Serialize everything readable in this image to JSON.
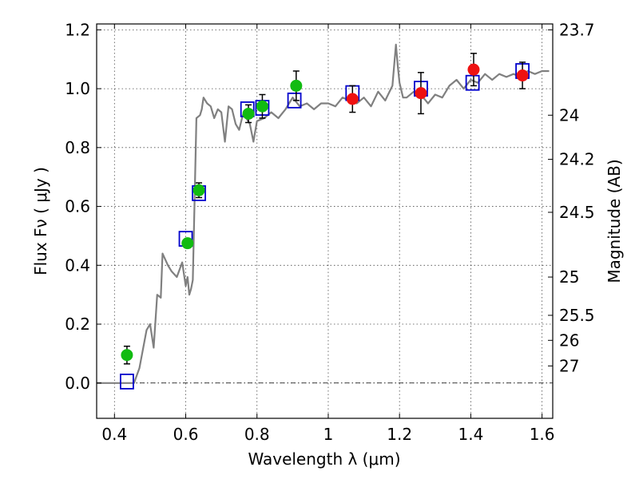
{
  "chart_data": {
    "type": "scatter",
    "xlabel": "Wavelength  λ (μm)",
    "ylabel": "Flux  Fν  ( μJy )",
    "ylabel_right": "Magnitude (AB)",
    "xlim": [
      0.35,
      1.63
    ],
    "ylim": [
      -0.12,
      1.22
    ],
    "x_ticks": [
      0.4,
      0.6,
      0.8,
      1.0,
      1.2,
      1.4,
      1.6
    ],
    "x_tick_labels": [
      "0.4",
      "0.6",
      "0.8",
      "1",
      "1.2",
      "1.4",
      "1.6"
    ],
    "y_ticks": [
      0.0,
      0.2,
      0.4,
      0.6,
      0.8,
      1.0,
      1.2
    ],
    "y_tick_labels": [
      "0.0",
      "0.2",
      "0.4",
      "0.6",
      "0.8",
      "1.0",
      "1.2"
    ],
    "right_ticks": [
      {
        "label": "23.7",
        "flux": 1.2
      },
      {
        "label": "24",
        "flux": 0.91
      },
      {
        "label": "24.2",
        "flux": 0.76
      },
      {
        "label": "24.5",
        "flux": 0.58
      },
      {
        "label": "25",
        "flux": 0.36
      },
      {
        "label": "25.5",
        "flux": 0.23
      },
      {
        "label": "26",
        "flux": 0.145
      },
      {
        "label": "27",
        "flux": 0.058
      }
    ],
    "grid": true,
    "colors": {
      "model": "#808080",
      "green": "#11bb11",
      "red": "#ee1111",
      "square": "#0000cc",
      "error": "#000000",
      "zero_line": "#000000"
    },
    "series": [
      {
        "marker": "line",
        "x": [
          0.35,
          0.4,
          0.43,
          0.455,
          0.47,
          0.49,
          0.5,
          0.51,
          0.52,
          0.53,
          0.535,
          0.55,
          0.56,
          0.575,
          0.59,
          0.6,
          0.605,
          0.61,
          0.615,
          0.62,
          0.63,
          0.64,
          0.645,
          0.65,
          0.66,
          0.67,
          0.68,
          0.69,
          0.7,
          0.71,
          0.72,
          0.73,
          0.74,
          0.75,
          0.76,
          0.77,
          0.78,
          0.79,
          0.8,
          0.82,
          0.84,
          0.86,
          0.88,
          0.9,
          0.92,
          0.94,
          0.96,
          0.98,
          1.0,
          1.02,
          1.04,
          1.06,
          1.08,
          1.1,
          1.12,
          1.14,
          1.16,
          1.18,
          1.19,
          1.195,
          1.2,
          1.21,
          1.22,
          1.24,
          1.26,
          1.28,
          1.3,
          1.32,
          1.34,
          1.36,
          1.38,
          1.4,
          1.42,
          1.44,
          1.46,
          1.48,
          1.5,
          1.52,
          1.54,
          1.56,
          1.58,
          1.6,
          1.62
        ],
        "y": [
          0.0,
          0.0,
          0.0,
          0.0,
          0.05,
          0.18,
          0.2,
          0.12,
          0.3,
          0.29,
          0.44,
          0.4,
          0.38,
          0.36,
          0.41,
          0.33,
          0.36,
          0.3,
          0.32,
          0.35,
          0.9,
          0.91,
          0.93,
          0.97,
          0.95,
          0.94,
          0.9,
          0.93,
          0.92,
          0.82,
          0.94,
          0.93,
          0.88,
          0.86,
          0.91,
          0.9,
          0.88,
          0.82,
          0.89,
          0.9,
          0.92,
          0.9,
          0.93,
          0.97,
          0.94,
          0.95,
          0.93,
          0.95,
          0.95,
          0.94,
          0.97,
          0.96,
          0.95,
          0.97,
          0.94,
          0.99,
          0.96,
          1.01,
          1.15,
          1.08,
          1.02,
          0.97,
          0.97,
          0.99,
          0.98,
          0.95,
          0.98,
          0.97,
          1.01,
          1.03,
          1.0,
          1.03,
          1.02,
          1.05,
          1.03,
          1.05,
          1.04,
          1.05,
          1.04,
          1.06,
          1.05,
          1.06,
          1.06
        ]
      },
      {
        "marker": "circle",
        "color": "green",
        "x": [
          0.435,
          0.605,
          0.637,
          0.776,
          0.815,
          0.91
        ],
        "y": [
          0.095,
          0.475,
          0.655,
          0.915,
          0.94,
          1.01
        ],
        "yerr": [
          0.03,
          0.015,
          0.025,
          0.03,
          0.04,
          0.05
        ]
      },
      {
        "marker": "circle",
        "color": "red",
        "x": [
          1.068,
          1.26,
          1.408,
          1.545
        ],
        "y": [
          0.965,
          0.985,
          1.065,
          1.045
        ],
        "yerr": [
          0.045,
          0.07,
          0.055,
          0.045
        ]
      },
      {
        "marker": "square",
        "color": "square",
        "x": [
          0.435,
          0.6,
          0.637,
          0.773,
          0.815,
          0.905,
          1.068,
          1.26,
          1.405,
          1.545
        ],
        "y": [
          0.005,
          0.49,
          0.645,
          0.93,
          0.935,
          0.96,
          0.985,
          1.0,
          1.02,
          1.06
        ]
      }
    ]
  }
}
